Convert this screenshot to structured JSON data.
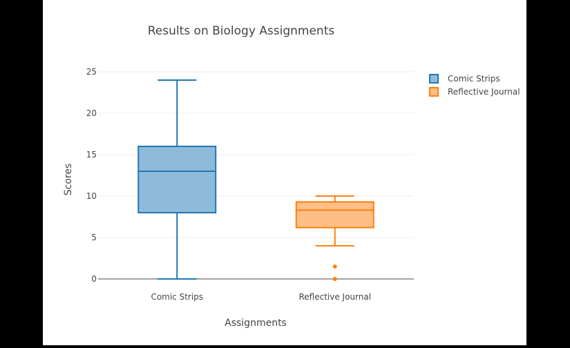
{
  "chart_data": {
    "type": "box",
    "title": "Results on Biology Assignments",
    "xlabel": "Assignments",
    "ylabel": "Scores",
    "ylim": [
      0,
      25
    ],
    "yticks": [
      0,
      5,
      10,
      15,
      20,
      25
    ],
    "grid": true,
    "legend_position": "top-right",
    "categories": [
      "Comic Strips",
      "Reflective Journal"
    ],
    "series": [
      {
        "name": "Comic Strips",
        "color": "#1f77b4",
        "fill": "#8fbbdb",
        "min": 0,
        "q1": 8,
        "median": 13,
        "q3": 16,
        "max": 24,
        "outliers": []
      },
      {
        "name": "Reflective Journal",
        "color": "#ff7f0e",
        "fill": "#ffbf87",
        "min": 4,
        "q1": 6.2,
        "median": 8.3,
        "q3": 9.3,
        "max": 10,
        "outliers": [
          1.5,
          0
        ]
      }
    ]
  }
}
